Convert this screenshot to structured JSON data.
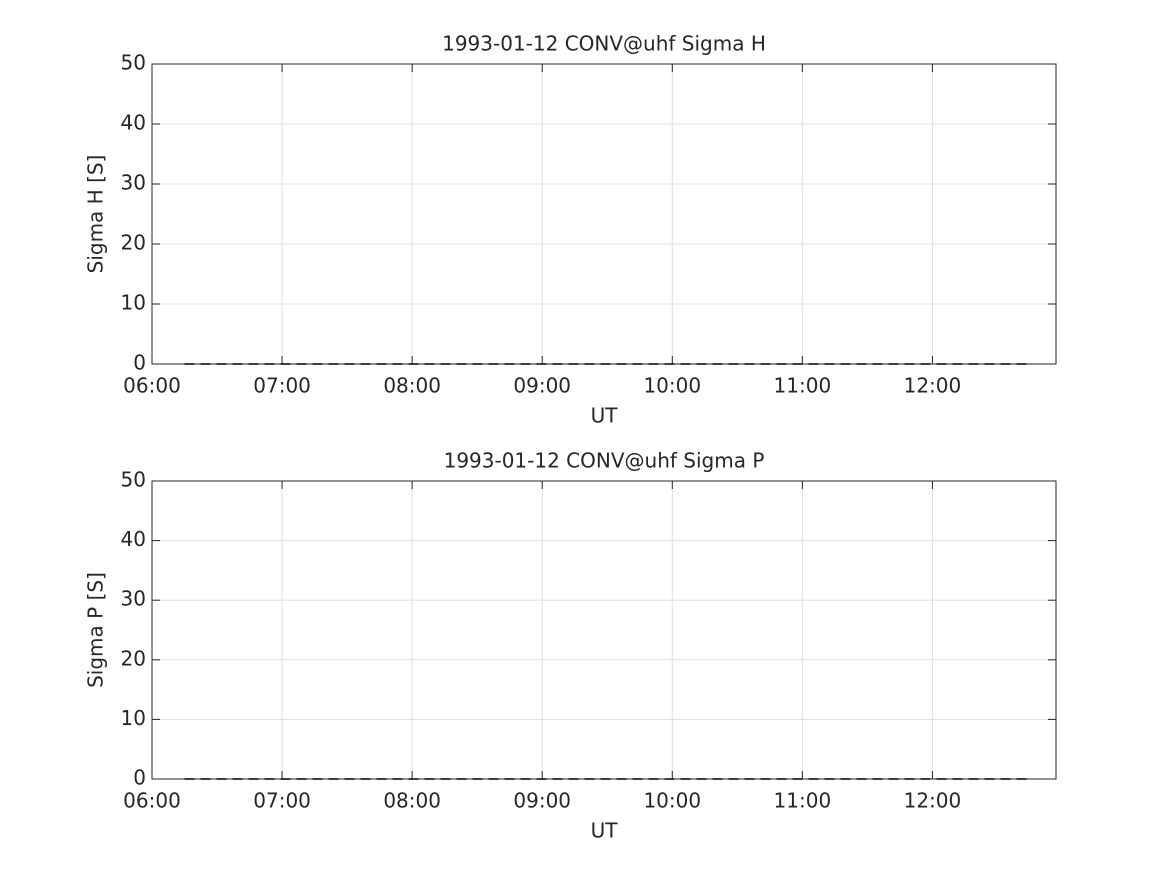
{
  "chart_data": [
    {
      "type": "line",
      "title": "1993-01-12  CONV@uhf Sigma H",
      "xlabel": "UT",
      "ylabel": "Sigma H [S]",
      "x": [
        "06:15",
        "06:45",
        "07:15",
        "07:45",
        "08:15",
        "08:45",
        "09:15",
        "09:45",
        "10:15",
        "10:45",
        "11:15",
        "11:45",
        "12:15",
        "12:45"
      ],
      "series": [
        {
          "color": "#000000",
          "line_style": "dashed",
          "values": [
            0,
            0,
            0,
            0,
            0,
            0,
            0,
            0,
            0,
            0,
            0,
            0,
            0,
            0
          ]
        }
      ],
      "xlim": [
        "06:00",
        "12:57"
      ],
      "xticks": [
        "06:00",
        "07:00",
        "08:00",
        "09:00",
        "10:00",
        "11:00",
        "12:00"
      ],
      "ylim": [
        0,
        50
      ],
      "yticks": [
        0,
        10,
        20,
        30,
        40,
        50
      ],
      "grid": true
    },
    {
      "type": "line",
      "title": "1993-01-12  CONV@uhf Sigma P",
      "xlabel": "UT",
      "ylabel": "Sigma P [S]",
      "x": [
        "06:15",
        "06:45",
        "07:15",
        "07:45",
        "08:15",
        "08:45",
        "09:15",
        "09:45",
        "10:15",
        "10:45",
        "11:15",
        "11:45",
        "12:15",
        "12:45"
      ],
      "series": [
        {
          "color": "#000000",
          "line_style": "dashed",
          "values": [
            0,
            0,
            0,
            0,
            0,
            0,
            0,
            0,
            0,
            0,
            0,
            0,
            0,
            0
          ]
        }
      ],
      "xlim": [
        "06:00",
        "12:57"
      ],
      "xticks": [
        "06:00",
        "07:00",
        "08:00",
        "09:00",
        "10:00",
        "11:00",
        "12:00"
      ],
      "ylim": [
        0,
        50
      ],
      "yticks": [
        0,
        10,
        20,
        30,
        40,
        50
      ],
      "grid": true
    }
  ]
}
